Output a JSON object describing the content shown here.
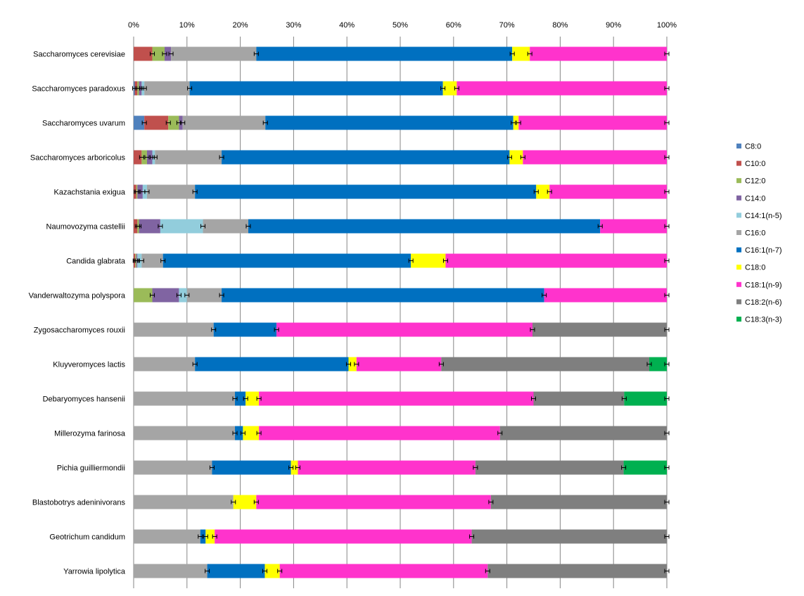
{
  "chart_data": {
    "type": "bar",
    "orientation": "horizontal",
    "stacking": "percent",
    "xlim": [
      0,
      100
    ],
    "x_ticks": [
      "0%",
      "10%",
      "20%",
      "30%",
      "40%",
      "50%",
      "60%",
      "70%",
      "80%",
      "90%",
      "100%"
    ],
    "grid": true,
    "legend_position": "right",
    "categories": [
      "Saccharomyces cerevisiae",
      "Saccharomyces paradoxus",
      "Saccharomyces uvarum",
      "Saccharomyces arboricolus",
      "Kazachstania exigua",
      "Naumovozyma castellii",
      "Candida glabrata",
      "Vanderwaltozyma polyspora",
      "Zygosaccharomyces rouxii",
      "Kluyveromyces lactis",
      "Debaryomyces hansenii",
      "Millerozyma farinosa",
      "Pichia guilliermondii",
      "Blastobotrys adeninivorans",
      "Geotrichum candidum",
      "Yarrowia lipolytica"
    ],
    "series": [
      {
        "name": "C8:0",
        "color": "#4f81bd",
        "values": [
          0,
          0.2,
          2,
          0,
          0,
          0,
          0,
          0,
          0,
          0,
          0,
          0,
          0,
          0,
          0,
          0
        ]
      },
      {
        "name": "C10:0",
        "color": "#c0504d",
        "values": [
          3.5,
          0.5,
          4.5,
          1.5,
          0.5,
          0.7,
          0.3,
          0,
          0,
          0,
          0,
          0,
          0,
          0,
          0,
          0
        ]
      },
      {
        "name": "C12:0",
        "color": "#9bbb59",
        "values": [
          2.3,
          0.3,
          2,
          1,
          0.2,
          0.3,
          0.2,
          3.5,
          0,
          0,
          0,
          0,
          0,
          0,
          0,
          0
        ]
      },
      {
        "name": "C14:0",
        "color": "#8064a2",
        "values": [
          1.2,
          0.5,
          0.7,
          1,
          1,
          4,
          0.2,
          5,
          0,
          0,
          0,
          0,
          0,
          0,
          0,
          0
        ]
      },
      {
        "name": "C14:1(n-5)",
        "color": "#92cddc",
        "values": [
          0,
          0.5,
          0,
          0.5,
          0.8,
          8,
          0.8,
          1.5,
          0,
          0,
          0,
          0,
          0,
          0,
          0,
          0
        ]
      },
      {
        "name": "C16:0",
        "color": "#a5a5a5",
        "values": [
          16,
          8.5,
          15.5,
          12.5,
          9,
          8.5,
          4,
          6.5,
          15,
          11.5,
          19,
          19,
          14.7,
          18.7,
          12.5,
          13.8
        ]
      },
      {
        "name": "C16:1(n-7)",
        "color": "#0070c0",
        "values": [
          48,
          47.5,
          46.5,
          54,
          64,
          66,
          46.5,
          60.5,
          11.8,
          28.8,
          2,
          1.5,
          14.8,
          0,
          1,
          10.8
        ]
      },
      {
        "name": "C18:0",
        "color": "#ffff00",
        "values": [
          3.3,
          2.6,
          1,
          2.5,
          2.5,
          0,
          6.5,
          0,
          0,
          1.5,
          2.5,
          3,
          1.3,
          4.3,
          1.7,
          2.8
        ]
      },
      {
        "name": "C18:1(n-9)",
        "color": "#ff33cc",
        "values": [
          25.7,
          39.4,
          27.8,
          27,
          22,
          12.5,
          41.5,
          23,
          48,
          15.9,
          51.5,
          45.2,
          33.3,
          44,
          48.2,
          39
        ]
      },
      {
        "name": "C18:2(n-6)",
        "color": "#7f7f7f",
        "values": [
          0,
          0,
          0,
          0,
          0,
          0,
          0,
          0,
          25.2,
          39,
          17,
          31.3,
          27.8,
          33,
          36.6,
          33.6
        ]
      },
      {
        "name": "C18:3(n-3)",
        "color": "#00b050",
        "values": [
          0,
          0,
          0,
          0,
          0,
          0,
          0,
          0,
          0,
          3.3,
          8,
          0,
          8.1,
          0,
          0,
          0
        ]
      }
    ]
  }
}
